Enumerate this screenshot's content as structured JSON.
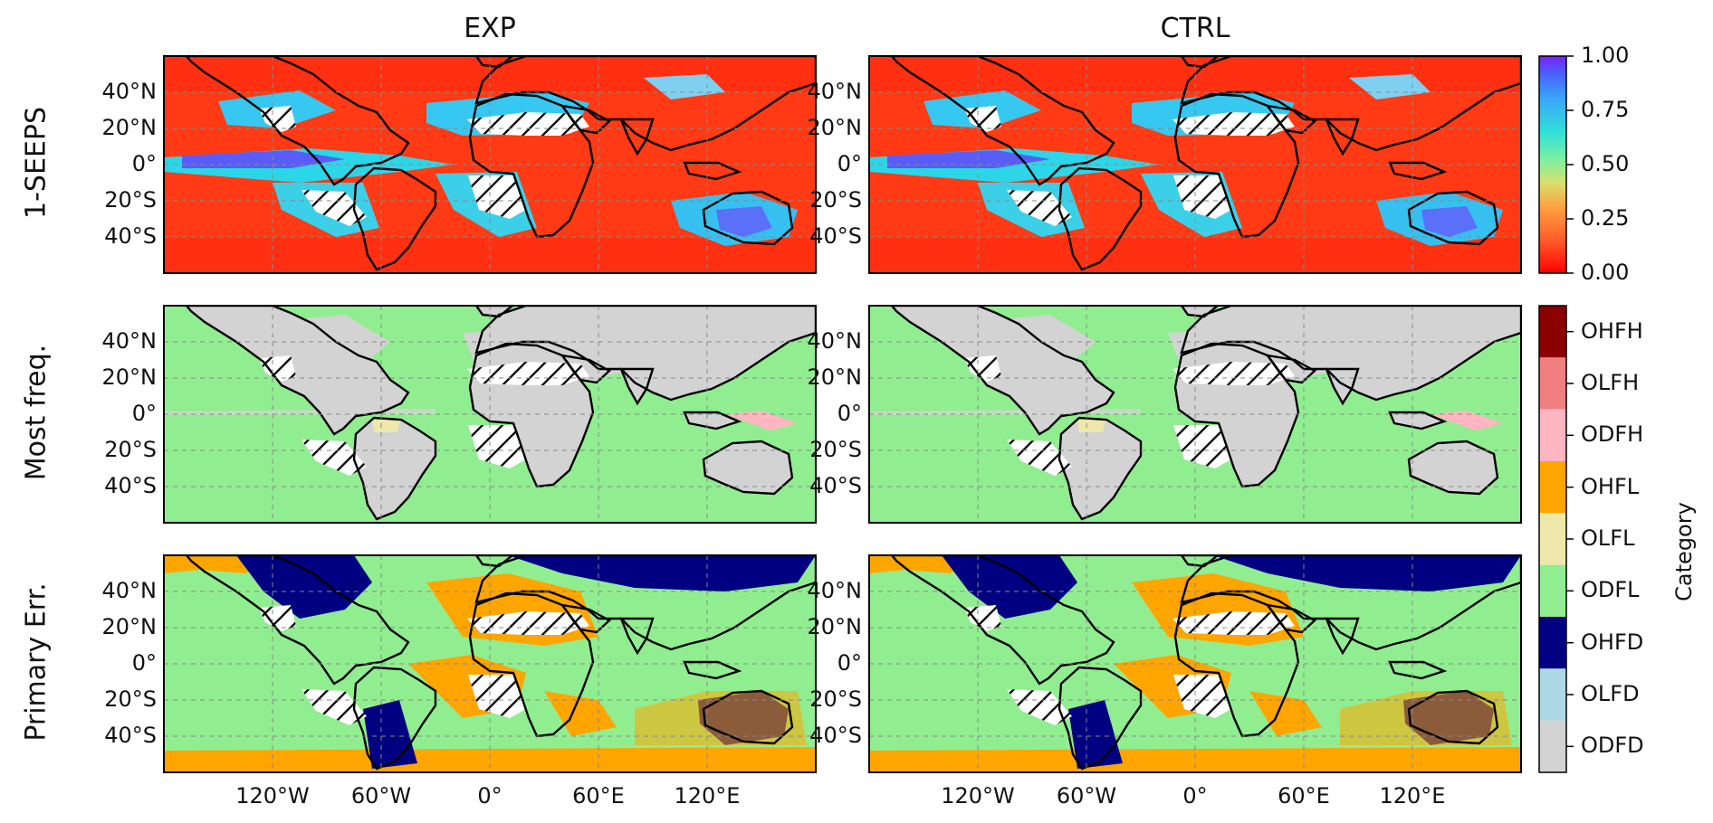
{
  "chart_data": {
    "type": "heatmap",
    "columns": [
      "EXP",
      "CTRL"
    ],
    "rows": [
      "1-SEEPS",
      "Most freq.",
      "Primary Err."
    ],
    "lat_ticks": [
      "40°N",
      "20°N",
      "0°",
      "20°S",
      "40°S"
    ],
    "lat_values": [
      40,
      20,
      0,
      -20,
      -40
    ],
    "lon_ticks": [
      "120°W",
      "60°W",
      "0°",
      "60°E",
      "120°E"
    ],
    "lon_values": [
      -120,
      -60,
      0,
      60,
      120
    ],
    "xlim": [
      -180,
      180
    ],
    "ylim": [
      -60,
      60
    ],
    "grid": true,
    "colorbar_continuous": {
      "colormap": "rainbow",
      "ticks": [
        "1.00",
        "0.75",
        "0.50",
        "0.25",
        "0.00"
      ],
      "range": [
        0,
        1
      ]
    },
    "colorbar_categorical": {
      "label": "Category",
      "categories": [
        {
          "name": "OHFH",
          "color": "#8b0000"
        },
        {
          "name": "OLFH",
          "color": "#f08080"
        },
        {
          "name": "ODFH",
          "color": "#ffb6c1"
        },
        {
          "name": "OHFL",
          "color": "#ffa500"
        },
        {
          "name": "OLFL",
          "color": "#eee8aa"
        },
        {
          "name": "ODFL",
          "color": "#90ee90"
        },
        {
          "name": "OHFD",
          "color": "#000080"
        },
        {
          "name": "OLFD",
          "color": "#add8e6"
        },
        {
          "name": "ODFD",
          "color": "#d3d3d3"
        }
      ]
    }
  }
}
